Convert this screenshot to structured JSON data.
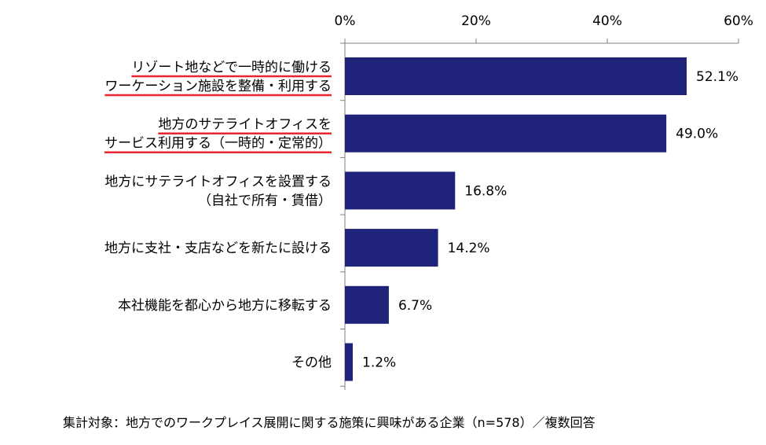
{
  "chart_data": {
    "type": "bar",
    "orientation": "horizontal",
    "categories": [
      [
        "リゾート地などで一時的に働ける",
        "ワーケーション施設を整備・利用する"
      ],
      [
        "地方のサテライトオフィスを",
        "サービス利用する（一時的・定常的）"
      ],
      [
        "地方にサテライトオフィスを設置する",
        "（自社で所有・賃借）"
      ],
      [
        "地方に支社・支店などを新たに設ける"
      ],
      [
        "本社機能を都心から地方に移転する"
      ],
      [
        "その他"
      ]
    ],
    "values": [
      52.1,
      49.0,
      16.8,
      14.2,
      6.7,
      1.2
    ],
    "value_labels": [
      "52.1%",
      "49.0%",
      "16.8%",
      "14.2%",
      "6.7%",
      "1.2%"
    ],
    "xlim": [
      0,
      60
    ],
    "ticks": [
      0,
      20,
      40,
      60
    ],
    "tick_labels": [
      "0%",
      "20%",
      "40%",
      "60%"
    ],
    "axis_position": "top",
    "grid": false,
    "bar_color": "#1f237a",
    "highlight_color": "#e8262d",
    "highlighted_categories": [
      0,
      1
    ],
    "note": "集計対象：地方でのワークプレイス展開に関する施策に興味がある企業（n=578）／複数回答"
  }
}
